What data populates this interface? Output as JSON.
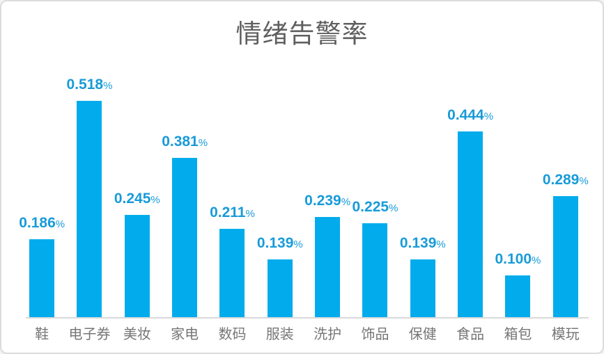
{
  "page": {
    "background_color": "#ffffff",
    "frame_border_color": "#dcdcdc"
  },
  "chart_data": {
    "type": "bar",
    "title": "情绪告警率",
    "xlabel": "",
    "ylabel": "",
    "categories": [
      "鞋",
      "电子券",
      "美妆",
      "家电",
      "数码",
      "服装",
      "洗护",
      "饰品",
      "保健",
      "食品",
      "箱包",
      "模玩"
    ],
    "values": [
      0.186,
      0.518,
      0.245,
      0.381,
      0.211,
      0.139,
      0.239,
      0.225,
      0.139,
      0.444,
      0.1,
      0.289
    ],
    "unit": "%",
    "value_decimals": 3,
    "ylim": [
      0,
      0.606
    ],
    "grid": false,
    "legend": "none",
    "data_labels": true,
    "bar_color": "#02acec",
    "value_label_color": "#189bd8",
    "title_color": "#5f5f5f",
    "category_label_color": "#767676",
    "axis_line_color": "#d9d9d9"
  }
}
